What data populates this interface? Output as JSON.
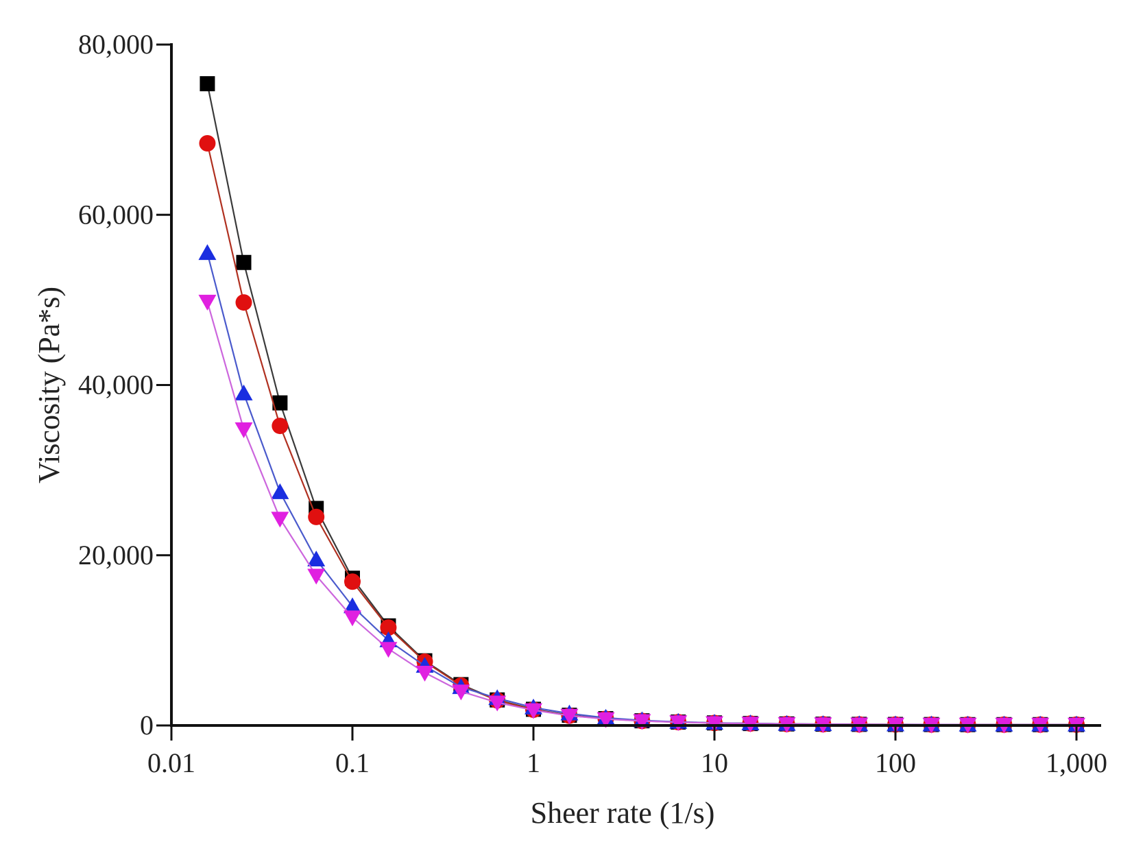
{
  "chart_data": {
    "type": "line",
    "title": "",
    "xlabel": "Sheer rate (1/s)",
    "ylabel": "Viscosity (Pa*s)",
    "xscale": "log",
    "xlim": [
      0.01,
      1200
    ],
    "ylim": [
      0,
      80000
    ],
    "x_ticks": [
      {
        "value": 0.01,
        "label": "0.01"
      },
      {
        "value": 0.1,
        "label": "0.1"
      },
      {
        "value": 1,
        "label": "1"
      },
      {
        "value": 10,
        "label": "10"
      },
      {
        "value": 100,
        "label": "100"
      },
      {
        "value": 1000,
        "label": "1,000"
      }
    ],
    "y_ticks": [
      {
        "value": 0,
        "label": "0"
      },
      {
        "value": 20000,
        "label": "20,000"
      },
      {
        "value": 40000,
        "label": "40,000"
      },
      {
        "value": 60000,
        "label": "60,000"
      },
      {
        "value": 80000,
        "label": "80,000"
      }
    ],
    "x": [
      0.0158,
      0.0251,
      0.0398,
      0.0631,
      0.1,
      0.158,
      0.251,
      0.398,
      0.631,
      1,
      1.58,
      2.51,
      3.98,
      6.31,
      10,
      15.8,
      25.1,
      39.8,
      63.1,
      100,
      158,
      251,
      398,
      631,
      1000
    ],
    "series": [
      {
        "name": "black squares",
        "color": "#000000",
        "line_color": "#3a3a3a",
        "marker": "square",
        "values": [
          75400,
          54400,
          37900,
          25500,
          17300,
          11700,
          7600,
          4800,
          3000,
          1900,
          1200,
          800,
          550,
          400,
          300,
          230,
          180,
          150,
          130,
          120,
          110,
          100,
          100,
          100,
          100
        ]
      },
      {
        "name": "red circles",
        "color": "#e01010",
        "line_color": "#b03020",
        "marker": "circle",
        "values": [
          68400,
          49700,
          35200,
          24500,
          16900,
          11500,
          7500,
          4700,
          2950,
          1850,
          1150,
          780,
          530,
          390,
          290,
          225,
          175,
          145,
          125,
          115,
          105,
          100,
          100,
          100,
          100
        ]
      },
      {
        "name": "blue triangles",
        "color": "#1a2ee0",
        "line_color": "#4a5acc",
        "marker": "triangle-up",
        "values": [
          55500,
          39000,
          27400,
          19500,
          14000,
          10000,
          7000,
          4500,
          3200,
          2100,
          1400,
          900,
          600,
          420,
          310,
          240,
          185,
          150,
          130,
          120,
          110,
          100,
          100,
          100,
          100
        ]
      },
      {
        "name": "magenta triangles",
        "color": "#e020e0",
        "line_color": "#cc66dd",
        "marker": "triangle-down",
        "values": [
          49800,
          34800,
          24300,
          17600,
          12700,
          9000,
          6200,
          4000,
          2700,
          1800,
          1150,
          750,
          520,
          380,
          280,
          220,
          175,
          145,
          125,
          115,
          105,
          100,
          100,
          100,
          100
        ]
      }
    ]
  }
}
